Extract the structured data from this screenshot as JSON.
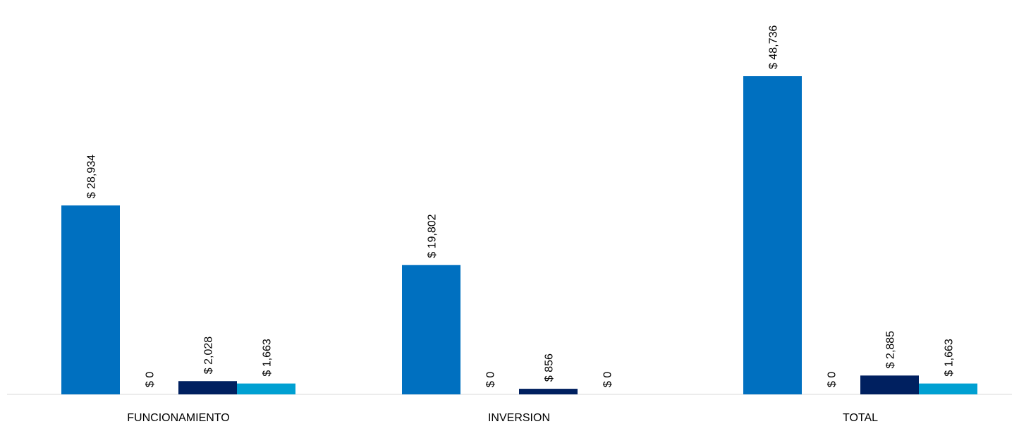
{
  "chart_data": {
    "type": "bar",
    "categories": [
      "FUNCIONAMIENTO",
      "INVERSION",
      "TOTAL"
    ],
    "series": [
      {
        "values": [
          28934,
          19802,
          48736
        ],
        "labels": [
          "$ 28,934",
          "$ 19,802",
          "$ 48,736"
        ],
        "color": "#0070C0"
      },
      {
        "values": [
          0,
          0,
          0
        ],
        "labels": [
          "$ 0",
          "$ 0",
          "$ 0"
        ],
        "color": "#5B9BD5"
      },
      {
        "values": [
          2028,
          856,
          2885
        ],
        "labels": [
          "$ 2,028",
          "$ 856",
          "$ 2,885"
        ],
        "color": "#002060"
      },
      {
        "values": [
          1663,
          0,
          1663
        ],
        "labels": [
          "$ 1,663",
          "$ 0",
          "$ 1,663"
        ],
        "color": "#00A0D2"
      }
    ],
    "ylim": [
      0,
      49000
    ],
    "grid": false,
    "legend": "none"
  }
}
